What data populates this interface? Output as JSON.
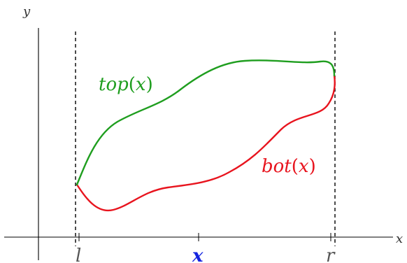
{
  "axes": {
    "x_label": "x",
    "y_label": "y"
  },
  "curves": {
    "top": {
      "fn": "top",
      "paren_open": "(",
      "arg": "x",
      "paren_close": ")",
      "color": "#1f9e1f"
    },
    "bottom": {
      "fn": "bot",
      "paren_open": "(",
      "arg": "x",
      "paren_close": ")",
      "color": "#e8141e"
    }
  },
  "markers": {
    "left": "l",
    "middle": "x",
    "right": "r",
    "middle_color": "#1424e0"
  },
  "colors": {
    "axis": "#000000",
    "guide_lines": "#000000"
  }
}
